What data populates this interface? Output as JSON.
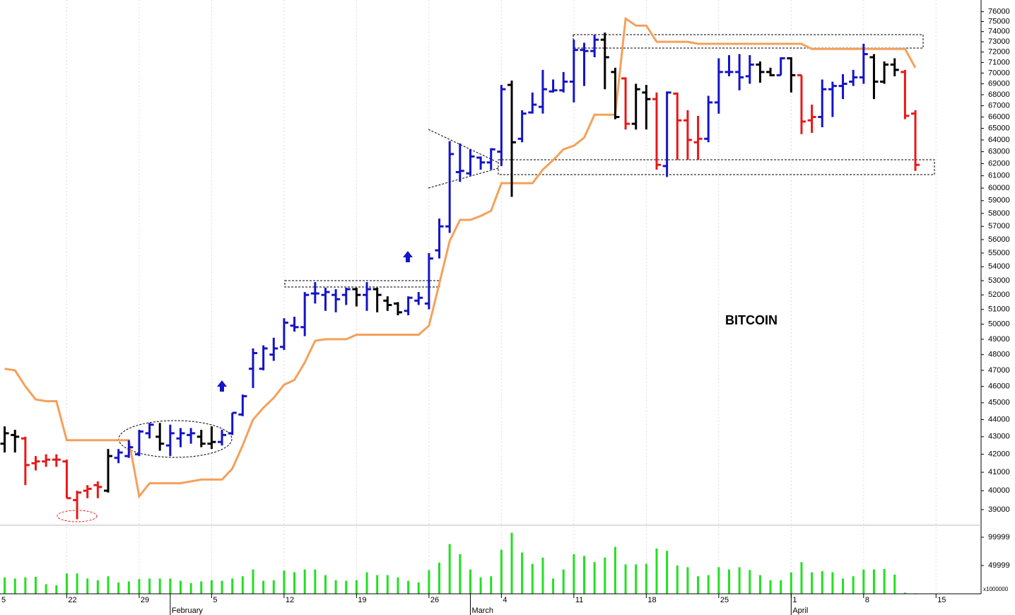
{
  "chart_data": {
    "type": "ohlc",
    "title": "BITCOIN",
    "log_scale": true,
    "grid": true,
    "xlim": [
      0.55,
      95.35
    ],
    "ylim": [
      38300,
      77200
    ],
    "yticks": [
      39000,
      40000,
      41000,
      42000,
      43000,
      44000,
      45000,
      46000,
      47000,
      48000,
      49000,
      50000,
      51000,
      52000,
      53000,
      54000,
      55000,
      56000,
      57000,
      58000,
      59000,
      60000,
      61000,
      62000,
      63000,
      64000,
      65000,
      66000,
      67000,
      68000,
      69000,
      70000,
      71000,
      72000,
      73000,
      74000,
      75000,
      76000
    ],
    "xticks": [
      {
        "value": 0,
        "label": "5"
      },
      {
        "value": 7,
        "label": "22"
      },
      {
        "value": 14,
        "label": "29"
      },
      {
        "value": 21,
        "label": "5"
      },
      {
        "value": 28,
        "label": "12"
      },
      {
        "value": 35,
        "label": "19"
      },
      {
        "value": 42,
        "label": "26"
      },
      {
        "value": 49,
        "label": "4"
      },
      {
        "value": 56,
        "label": "11"
      },
      {
        "value": 63,
        "label": "18"
      },
      {
        "value": 70,
        "label": "25"
      },
      {
        "value": 77,
        "label": "1"
      },
      {
        "value": 84,
        "label": "8"
      },
      {
        "value": 91,
        "label": "15"
      }
    ],
    "month_ticks": [
      {
        "value": 17,
        "label": "February"
      },
      {
        "value": 46,
        "label": "March"
      },
      {
        "value": 77,
        "label": "April"
      }
    ],
    "x": [
      1,
      2,
      3,
      4,
      5,
      6,
      7,
      8,
      9,
      10,
      11,
      12,
      13,
      14,
      15,
      16,
      17,
      18,
      19,
      20,
      21,
      22,
      23,
      24,
      25,
      26,
      27,
      28,
      29,
      30,
      31,
      32,
      33,
      34,
      35,
      36,
      37,
      38,
      39,
      40,
      41,
      42,
      43,
      44,
      45,
      46,
      47,
      48,
      49,
      50,
      51,
      52,
      53,
      54,
      55,
      56,
      57,
      58,
      59,
      60,
      61,
      62,
      63,
      64,
      65,
      66,
      67,
      68,
      69,
      70,
      71,
      72,
      73,
      74,
      75,
      76,
      77,
      78,
      79,
      80,
      81,
      82,
      83,
      84,
      85,
      86,
      87,
      88,
      89
    ],
    "open": [
      42600,
      43100,
      42900,
      41500,
      41600,
      41700,
      41600,
      39500,
      40000,
      40300,
      40000,
      41800,
      41900,
      42000,
      43200,
      43000,
      42500,
      42900,
      43100,
      43000,
      42600,
      42700,
      43200,
      44300,
      47100,
      47100,
      48000,
      48500,
      49900,
      49800,
      52100,
      52000,
      52000,
      52000,
      52400,
      52000,
      52400,
      51600,
      51400,
      50900,
      51600,
      51400,
      55200,
      57000,
      61300,
      61200,
      62500,
      62100,
      63000,
      68900,
      64100,
      66400,
      66900,
      68300,
      68400,
      69200,
      72200,
      72100,
      73200,
      70100,
      69500,
      65400,
      68200,
      67600,
      61800,
      68100,
      65700,
      63800,
      64100,
      67300,
      70100,
      70100,
      69700,
      70800,
      70100,
      69800,
      71400,
      69800,
      65700,
      66000,
      68500,
      68800,
      69200,
      69600,
      71500,
      69200,
      70800,
      70100,
      66300
    ],
    "high": [
      43600,
      43400,
      43000,
      41900,
      42000,
      42000,
      41700,
      40000,
      40300,
      40500,
      42300,
      42300,
      42800,
      43400,
      43800,
      43800,
      43700,
      43500,
      43500,
      43400,
      43600,
      43400,
      44400,
      45500,
      48400,
      48600,
      49100,
      50400,
      50500,
      52200,
      52900,
      52500,
      52400,
      52500,
      52500,
      52900,
      52500,
      51900,
      51500,
      51900,
      52200,
      55000,
      57600,
      63900,
      63700,
      63200,
      62600,
      63300,
      68900,
      69300,
      66600,
      68200,
      70300,
      69400,
      70100,
      73200,
      72900,
      73700,
      73900,
      70500,
      69600,
      69000,
      68900,
      68200,
      68300,
      68200,
      66600,
      66100,
      67900,
      71400,
      71700,
      71800,
      71700,
      71100,
      70500,
      71500,
      71500,
      69800,
      67100,
      69400,
      69200,
      69900,
      70300,
      72800,
      71800,
      71100,
      71400,
      70300,
      66600
    ],
    "low": [
      42100,
      42100,
      40300,
      41100,
      41300,
      41300,
      39600,
      38500,
      39600,
      39600,
      39900,
      41500,
      41800,
      41900,
      42900,
      42200,
      41900,
      42400,
      42600,
      42400,
      42300,
      42500,
      43100,
      44200,
      45900,
      47000,
      47600,
      48300,
      49500,
      49200,
      51400,
      50900,
      50800,
      51300,
      51200,
      50900,
      50800,
      50900,
      50600,
      50600,
      51300,
      51000,
      54600,
      56500,
      60500,
      61000,
      61500,
      61500,
      61800,
      59300,
      63800,
      66300,
      66300,
      68200,
      68200,
      67300,
      68800,
      71500,
      68500,
      65800,
      64900,
      64900,
      64900,
      61500,
      60900,
      62300,
      62300,
      62300,
      63800,
      66300,
      69700,
      68400,
      69000,
      69100,
      69700,
      69800,
      68200,
      64500,
      64600,
      65100,
      66000,
      67600,
      68800,
      69000,
      67600,
      69000,
      69700,
      65800,
      61400
    ],
    "close": [
      43200,
      43000,
      41400,
      41600,
      41700,
      41700,
      39600,
      39900,
      40100,
      40200,
      41900,
      42100,
      42400,
      43300,
      43700,
      42600,
      43200,
      43200,
      43200,
      42600,
      42700,
      43100,
      44400,
      45400,
      48100,
      48400,
      48400,
      50100,
      49800,
      52000,
      52100,
      52200,
      51700,
      52400,
      52000,
      52400,
      52000,
      51300,
      50800,
      51800,
      51800,
      54600,
      57000,
      62800,
      61400,
      62600,
      62100,
      63200,
      68500,
      63800,
      66300,
      67100,
      68500,
      68400,
      69200,
      72200,
      72100,
      73200,
      71500,
      66000,
      65400,
      68500,
      67600,
      61900,
      68200,
      65700,
      64000,
      64100,
      67300,
      70100,
      70100,
      69600,
      70800,
      70100,
      69800,
      71400,
      69800,
      65600,
      66000,
      68500,
      68800,
      69000,
      69600,
      71800,
      69200,
      70800,
      70300,
      66100,
      61900
    ],
    "colors": [
      "#000000",
      "#000000",
      "#e81818",
      "#e81818",
      "#e81818",
      "#e81818",
      "#e81818",
      "#e81818",
      "#e81818",
      "#e81818",
      "#000000",
      "#1414c8",
      "#1414c8",
      "#1414c8",
      "#1414c8",
      "#000000",
      "#1414c8",
      "#1414c8",
      "#1414c8",
      "#000000",
      "#000000",
      "#1414c8",
      "#1414c8",
      "#1414c8",
      "#1414c8",
      "#1414c8",
      "#1414c8",
      "#1414c8",
      "#1414c8",
      "#1414c8",
      "#1414c8",
      "#1414c8",
      "#1414c8",
      "#1414c8",
      "#000000",
      "#1414c8",
      "#000000",
      "#000000",
      "#000000",
      "#1414c8",
      "#1414c8",
      "#1414c8",
      "#1414c8",
      "#1414c8",
      "#1414c8",
      "#1414c8",
      "#1414c8",
      "#1414c8",
      "#1414c8",
      "#000000",
      "#1414c8",
      "#1414c8",
      "#1414c8",
      "#1414c8",
      "#1414c8",
      "#1414c8",
      "#1414c8",
      "#1414c8",
      "#000000",
      "#000000",
      "#e81818",
      "#000000",
      "#000000",
      "#e81818",
      "#1414c8",
      "#e81818",
      "#e81818",
      "#e81818",
      "#1414c8",
      "#1414c8",
      "#1414c8",
      "#1414c8",
      "#1414c8",
      "#000000",
      "#000000",
      "#1414c8",
      "#000000",
      "#e81818",
      "#e81818",
      "#1414c8",
      "#1414c8",
      "#1414c8",
      "#1414c8",
      "#1414c8",
      "#000000",
      "#000000",
      "#000000",
      "#e81818",
      "#e81818"
    ],
    "overlay": {
      "color": "#f5a05a",
      "values": [
        47100,
        47000,
        46000,
        45200,
        45100,
        45100,
        42800,
        42800,
        42800,
        42800,
        42800,
        42800,
        42800,
        39700,
        40400,
        40400,
        40400,
        40400,
        40500,
        40600,
        40600,
        40600,
        41200,
        42500,
        44000,
        44700,
        45300,
        46100,
        46400,
        47500,
        48900,
        49000,
        49000,
        49000,
        49300,
        49300,
        49300,
        49300,
        49300,
        49300,
        49300,
        49900,
        52800,
        55900,
        57500,
        57500,
        57800,
        58200,
        60400,
        60400,
        60400,
        60400,
        61500,
        62300,
        63200,
        63500,
        64200,
        66200,
        66200,
        66200,
        75300,
        74600,
        74600,
        73000,
        73000,
        73000,
        73000,
        72800,
        72800,
        72800,
        72800,
        72800,
        72800,
        72800,
        72800,
        72800,
        72800,
        72800,
        72300,
        72300,
        72300,
        72300,
        72300,
        72300,
        72300,
        72300,
        72300,
        72300,
        70500
      ]
    },
    "volume": {
      "color": "#22e022",
      "unit": "x1000000",
      "ylim": [
        0,
        118750
      ],
      "yticks": [
        49999,
        99999
      ],
      "values": [
        29000,
        27000,
        29000,
        30000,
        17000,
        15000,
        36000,
        36000,
        27000,
        24000,
        31000,
        20000,
        22000,
        26000,
        27000,
        27000,
        27000,
        23000,
        19000,
        22000,
        24000,
        23000,
        27000,
        31000,
        43000,
        23000,
        24000,
        41000,
        38000,
        43000,
        43000,
        33000,
        24000,
        23000,
        24000,
        38000,
        33000,
        33000,
        29000,
        23000,
        20000,
        42000,
        55000,
        88000,
        70000,
        43000,
        29000,
        31000,
        78000,
        108000,
        73000,
        53000,
        64000,
        27000,
        43000,
        70000,
        67000,
        56000,
        64000,
        83000,
        52000,
        52000,
        53000,
        80000,
        76000,
        50000,
        47000,
        31000,
        33000,
        47000,
        43000,
        47000,
        42000,
        33000,
        24000,
        24000,
        38000,
        56000,
        38000,
        40000,
        38000,
        27000,
        31000,
        43000,
        43000,
        44000,
        34000,
        2000,
        1000
      ]
    }
  }
}
